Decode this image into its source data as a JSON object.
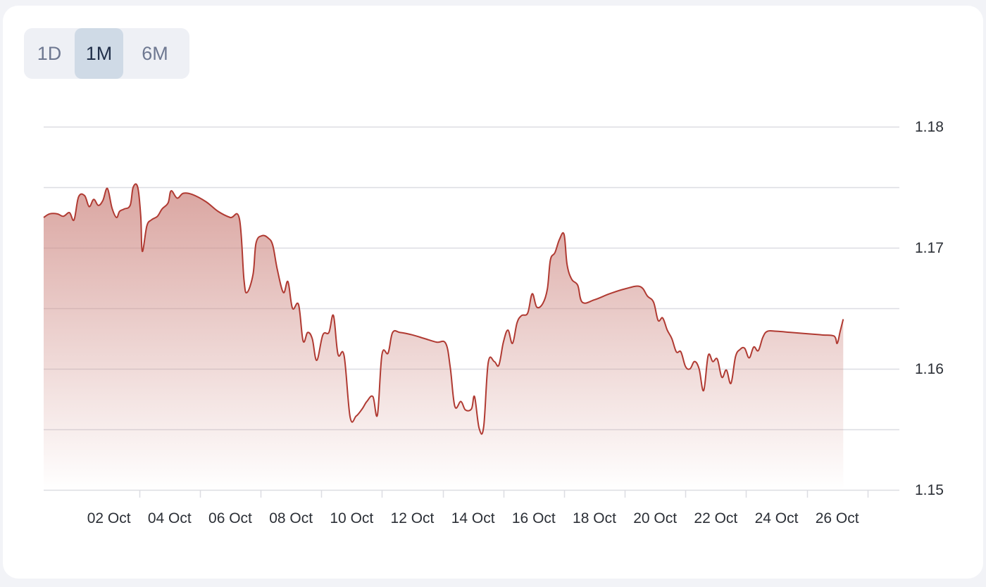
{
  "range_selector": {
    "options": [
      "1D",
      "1M",
      "6M"
    ],
    "selected": "1M"
  },
  "colors": {
    "line": "#b03a32",
    "fill_top": "#cf8b85",
    "grid": "#dcdde2",
    "active_button": "#cfdae6"
  },
  "chart_data": {
    "type": "area",
    "y_axis_position": "right",
    "ylim": [
      1.15,
      1.18
    ],
    "y_ticks": [
      1.15,
      1.16,
      1.17,
      1.18
    ],
    "x_tick_labels": [
      "02 Oct",
      "04 Oct",
      "06 Oct",
      "08 Oct",
      "10 Oct",
      "12 Oct",
      "14 Oct",
      "16 Oct",
      "18 Oct",
      "20 Oct",
      "22 Oct",
      "24 Oct",
      "26 Oct"
    ],
    "x_tick_days": [
      2,
      4,
      6,
      8,
      10,
      12,
      14,
      16,
      18,
      20,
      22,
      24,
      26
    ],
    "xlim_days": [
      -0.15,
      28.05
    ],
    "grid": true,
    "series": [
      {
        "points": [
          [
            -0.15,
            1.1725
          ],
          [
            0.05,
            1.1728
          ],
          [
            0.3,
            1.1728
          ],
          [
            0.5,
            1.1726
          ],
          [
            0.7,
            1.1729
          ],
          [
            0.85,
            1.1723
          ],
          [
            1.0,
            1.1742
          ],
          [
            1.2,
            1.1743
          ],
          [
            1.35,
            1.1734
          ],
          [
            1.5,
            1.174
          ],
          [
            1.65,
            1.1735
          ],
          [
            1.8,
            1.1739
          ],
          [
            1.95,
            1.1749
          ],
          [
            2.1,
            1.1733
          ],
          [
            2.25,
            1.1725
          ],
          [
            2.35,
            1.173
          ],
          [
            2.5,
            1.1732
          ],
          [
            2.7,
            1.1735
          ],
          [
            2.8,
            1.175
          ],
          [
            2.95,
            1.175
          ],
          [
            3.05,
            1.1726
          ],
          [
            3.1,
            1.1697
          ],
          [
            3.25,
            1.1718
          ],
          [
            3.4,
            1.1723
          ],
          [
            3.6,
            1.1726
          ],
          [
            3.75,
            1.1732
          ],
          [
            3.95,
            1.1737
          ],
          [
            4.05,
            1.1747
          ],
          [
            4.25,
            1.1741
          ],
          [
            4.45,
            1.1745
          ],
          [
            4.75,
            1.1744
          ],
          [
            5.2,
            1.1738
          ],
          [
            5.6,
            1.173
          ],
          [
            6.0,
            1.1725
          ],
          [
            6.3,
            1.1724
          ],
          [
            6.45,
            1.1674
          ],
          [
            6.55,
            1.1663
          ],
          [
            6.75,
            1.1678
          ],
          [
            6.85,
            1.1704
          ],
          [
            7.05,
            1.171
          ],
          [
            7.25,
            1.1708
          ],
          [
            7.4,
            1.1702
          ],
          [
            7.55,
            1.1682
          ],
          [
            7.75,
            1.1663
          ],
          [
            7.9,
            1.1672
          ],
          [
            8.05,
            1.165
          ],
          [
            8.25,
            1.1653
          ],
          [
            8.4,
            1.1623
          ],
          [
            8.55,
            1.163
          ],
          [
            8.7,
            1.1625
          ],
          [
            8.85,
            1.1607
          ],
          [
            9.05,
            1.1628
          ],
          [
            9.25,
            1.163
          ],
          [
            9.4,
            1.1644
          ],
          [
            9.55,
            1.1612
          ],
          [
            9.75,
            1.1611
          ],
          [
            9.95,
            1.156
          ],
          [
            10.15,
            1.1561
          ],
          [
            10.35,
            1.1567
          ],
          [
            10.5,
            1.1573
          ],
          [
            10.7,
            1.1577
          ],
          [
            10.85,
            1.1562
          ],
          [
            11.0,
            1.1612
          ],
          [
            11.2,
            1.1613
          ],
          [
            11.35,
            1.163
          ],
          [
            11.6,
            1.163
          ],
          [
            12.0,
            1.1628
          ],
          [
            12.4,
            1.1625
          ],
          [
            12.8,
            1.1622
          ],
          [
            13.1,
            1.1621
          ],
          [
            13.25,
            1.1601
          ],
          [
            13.4,
            1.1569
          ],
          [
            13.6,
            1.1573
          ],
          [
            13.75,
            1.1566
          ],
          [
            13.95,
            1.1567
          ],
          [
            14.05,
            1.1577
          ],
          [
            14.2,
            1.1551
          ],
          [
            14.35,
            1.1552
          ],
          [
            14.5,
            1.1605
          ],
          [
            14.7,
            1.1606
          ],
          [
            14.85,
            1.1603
          ],
          [
            15.0,
            1.1622
          ],
          [
            15.15,
            1.1632
          ],
          [
            15.3,
            1.1621
          ],
          [
            15.45,
            1.1638
          ],
          [
            15.6,
            1.1644
          ],
          [
            15.8,
            1.1646
          ],
          [
            15.95,
            1.1662
          ],
          [
            16.1,
            1.1651
          ],
          [
            16.3,
            1.1654
          ],
          [
            16.45,
            1.1666
          ],
          [
            16.55,
            1.169
          ],
          [
            16.7,
            1.1696
          ],
          [
            16.85,
            1.1707
          ],
          [
            17.0,
            1.1711
          ],
          [
            17.1,
            1.1686
          ],
          [
            17.25,
            1.1674
          ],
          [
            17.45,
            1.1669
          ],
          [
            17.6,
            1.1655
          ],
          [
            18.0,
            1.1657
          ],
          [
            18.5,
            1.1662
          ],
          [
            19.0,
            1.1666
          ],
          [
            19.5,
            1.1668
          ],
          [
            19.75,
            1.166
          ],
          [
            19.95,
            1.1655
          ],
          [
            20.1,
            1.164
          ],
          [
            20.25,
            1.1642
          ],
          [
            20.4,
            1.1632
          ],
          [
            20.55,
            1.1625
          ],
          [
            20.7,
            1.1614
          ],
          [
            20.85,
            1.1614
          ],
          [
            21.0,
            1.1602
          ],
          [
            21.15,
            1.16
          ],
          [
            21.3,
            1.1606
          ],
          [
            21.45,
            1.16
          ],
          [
            21.6,
            1.1582
          ],
          [
            21.75,
            1.1611
          ],
          [
            21.9,
            1.1606
          ],
          [
            22.05,
            1.1608
          ],
          [
            22.2,
            1.1593
          ],
          [
            22.35,
            1.1599
          ],
          [
            22.5,
            1.1588
          ],
          [
            22.65,
            1.161
          ],
          [
            22.8,
            1.1616
          ],
          [
            22.95,
            1.1617
          ],
          [
            23.1,
            1.1609
          ],
          [
            23.25,
            1.1618
          ],
          [
            23.4,
            1.1615
          ],
          [
            23.55,
            1.1626
          ],
          [
            23.7,
            1.1631
          ],
          [
            24.0,
            1.1631
          ],
          [
            24.5,
            1.163
          ],
          [
            25.0,
            1.1629
          ],
          [
            25.5,
            1.1628
          ],
          [
            25.9,
            1.1627
          ],
          [
            26.0,
            1.1621
          ],
          [
            26.1,
            1.1631
          ],
          [
            26.2,
            1.1641
          ]
        ]
      }
    ]
  }
}
